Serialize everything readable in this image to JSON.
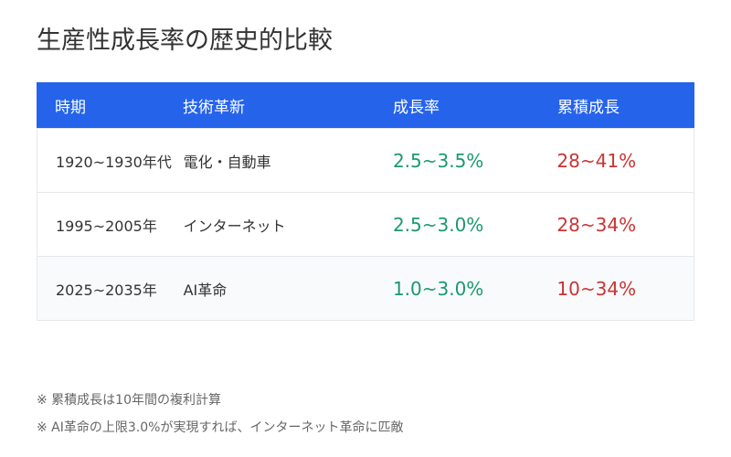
{
  "title": "生産性成長率の歴史的比較",
  "table": {
    "headers": [
      "時期",
      "技術革新",
      "成長率",
      "累積成長"
    ],
    "rows": [
      {
        "period": "1920~1930年代",
        "tech": "電化・自動車",
        "growth": "2.5~3.5%",
        "cumulative": "28~41%"
      },
      {
        "period": "1995~2005年",
        "tech": "インターネット",
        "growth": "2.5~3.0%",
        "cumulative": "28~34%"
      },
      {
        "period": "2025~2035年",
        "tech": "AI革命",
        "growth": "1.0~3.0%",
        "cumulative": "10~34%"
      }
    ]
  },
  "notes": [
    "※ 累積成長は10年間の複利計算",
    "※ AI革命の上限3.0%が実現すれば、インターネット革命に匹敵"
  ],
  "colors": {
    "header_bg": "#2563eb",
    "growth_text": "#1a9a6a",
    "cumulative_text": "#cc3333"
  }
}
